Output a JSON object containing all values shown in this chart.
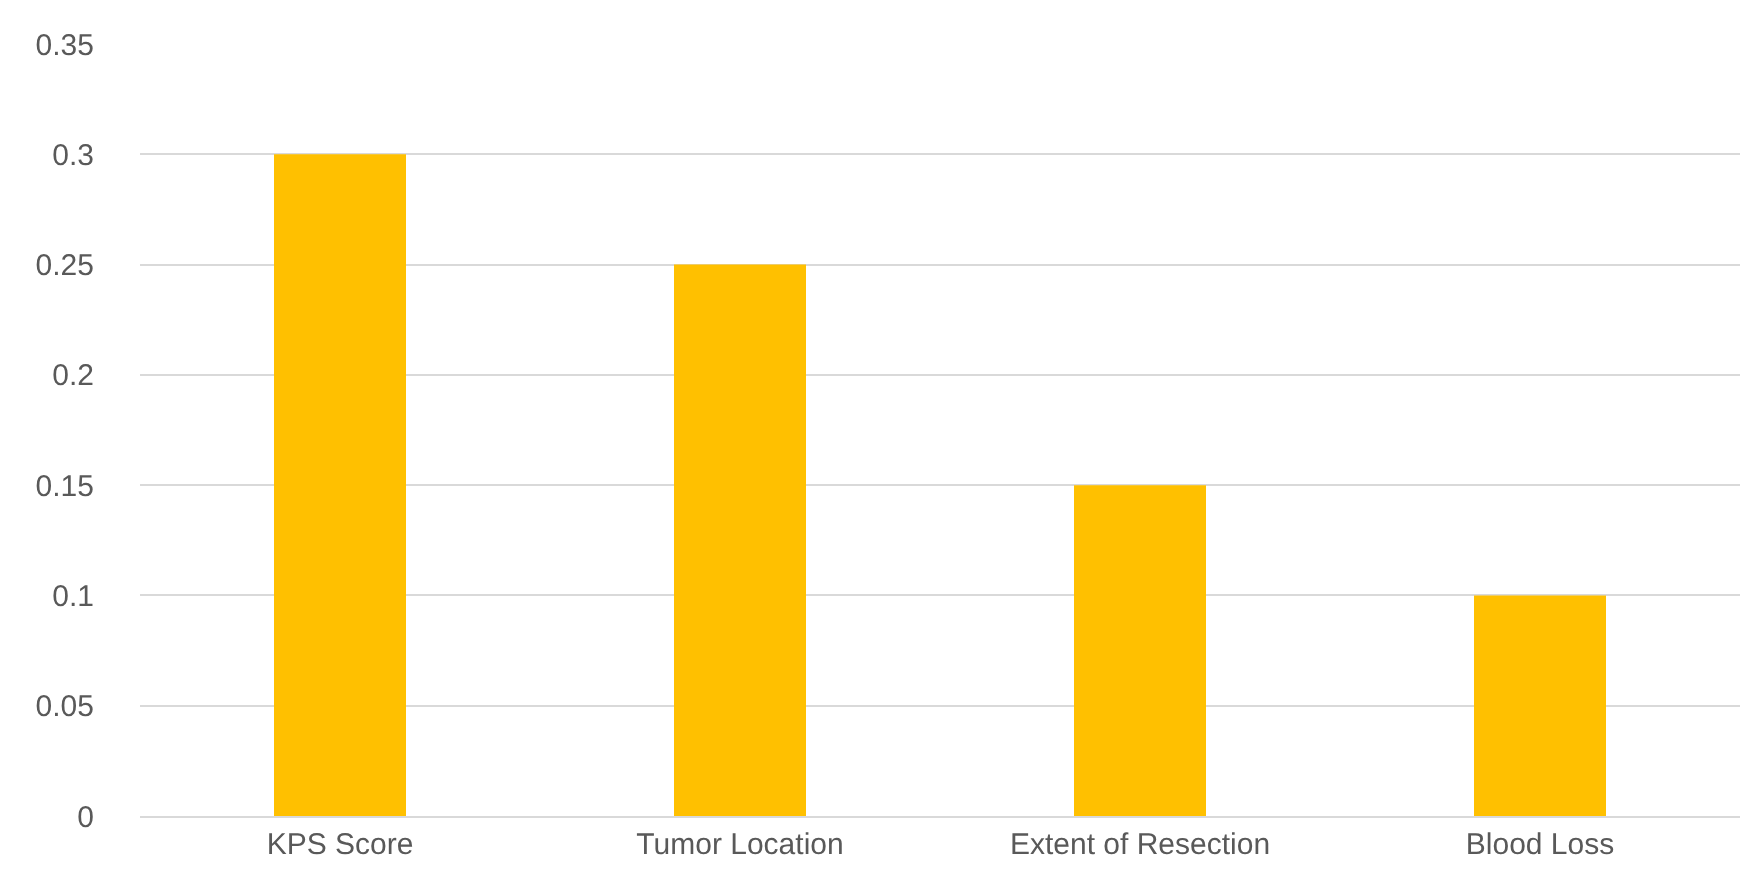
{
  "chart_data": {
    "type": "bar",
    "categories": [
      "KPS Score",
      "Tumor Location",
      "Extent of Resection",
      "Blood Loss"
    ],
    "values": [
      0.3,
      0.25,
      0.15,
      0.1
    ],
    "color": "#ffc000",
    "ylim": [
      0,
      0.35
    ],
    "yticks": [
      0,
      0.05,
      0.1,
      0.15,
      0.2,
      0.25,
      0.3,
      0.35
    ],
    "grid": "y"
  }
}
